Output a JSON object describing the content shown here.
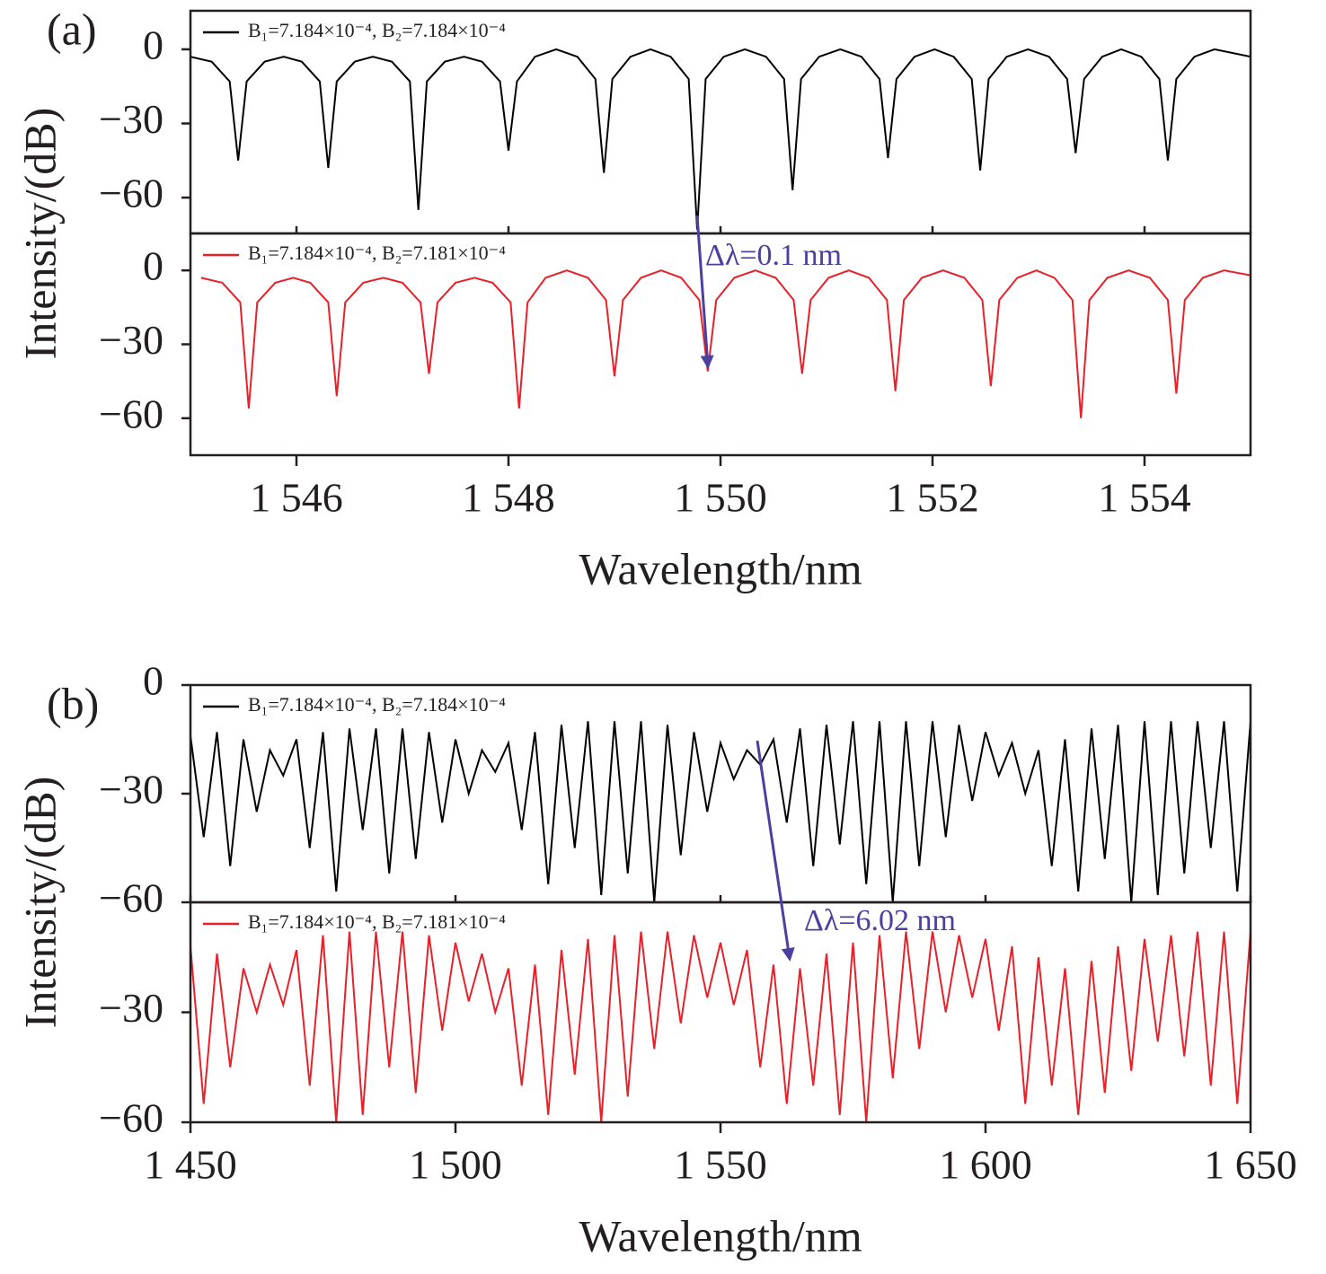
{
  "chart_data": [
    {
      "type": "line",
      "panel_label": "(a)",
      "ylabel": "Intensity/(dB)",
      "xlim": [
        1545,
        1555
      ],
      "ylim": [
        -74.5,
        15.6
      ],
      "yticks": [
        0,
        {
          "value": -30,
          "label": "−30"
        },
        {
          "value": -60,
          "label": "−60"
        }
      ],
      "x": [
        1545,
        1545.2,
        1545.37,
        1545.45,
        1545.53,
        1545.7,
        1545.88,
        1546.05,
        1546.22,
        1546.3,
        1546.38,
        1546.55,
        1546.72,
        1546.9,
        1547.07,
        1547.15,
        1547.23,
        1547.4,
        1547.58,
        1547.75,
        1547.92,
        1548.0,
        1548.08,
        1548.25,
        1548.45,
        1548.65,
        1548.82,
        1548.9,
        1548.98,
        1549.15,
        1549.34,
        1549.53,
        1549.7,
        1549.78,
        1549.86,
        1550.03,
        1550.23,
        1550.43,
        1550.6,
        1550.68,
        1550.76,
        1550.93,
        1551.13,
        1551.33,
        1551.5,
        1551.58,
        1551.66,
        1551.83,
        1552.02,
        1552.2,
        1552.37,
        1552.45,
        1552.53,
        1552.7,
        1552.9,
        1553.1,
        1553.27,
        1553.35,
        1553.43,
        1553.6,
        1553.78,
        1553.97,
        1554.14,
        1554.22,
        1554.3,
        1554.47,
        1554.66,
        1555
      ],
      "series": [
        {
          "name": "B₁=7.184×10⁻⁴, B₂=7.184×10⁻⁴",
          "color": "#000000",
          "values": [
            -3,
            -5,
            -13,
            -45,
            -13,
            -5,
            -3,
            -5,
            -13,
            -48,
            -13,
            -5,
            -3,
            -5,
            -13,
            -65,
            -13,
            -5,
            -3,
            -5,
            -13,
            -41,
            -13,
            -3,
            0,
            -3,
            -12,
            -50,
            -12,
            -3,
            0,
            -3,
            -12,
            -73,
            -12,
            -3,
            0,
            -3,
            -12,
            -57,
            -12,
            -3,
            0,
            -3,
            -12,
            -44,
            -12,
            -3,
            0,
            -3,
            -12,
            -49,
            -12,
            -3,
            0,
            -3,
            -12,
            -42,
            -12,
            -3,
            0,
            -3,
            -12,
            -45,
            -12,
            -3,
            0,
            -3
          ]
        }
      ]
    },
    {
      "type": "line",
      "xlabel": "Wavelength/nm",
      "annotation": "Δλ=0.1 nm",
      "xlim": [
        1545,
        1555
      ],
      "ylim": [
        -75,
        15
      ],
      "xticks": [
        {
          "value": 1546,
          "label": "1 546"
        },
        {
          "value": 1548,
          "label": "1 548"
        },
        {
          "value": 1550,
          "label": "1 550"
        },
        {
          "value": 1552,
          "label": "1 552"
        },
        {
          "value": 1554,
          "label": "1 554"
        }
      ],
      "yticks": [
        0,
        {
          "value": -30,
          "label": "−30"
        },
        {
          "value": -60,
          "label": "−60"
        }
      ],
      "x": [
        1545.1,
        1545.3,
        1545.47,
        1545.55,
        1545.63,
        1545.8,
        1545.97,
        1546.13,
        1546.3,
        1546.38,
        1546.46,
        1546.63,
        1546.82,
        1547.0,
        1547.17,
        1547.25,
        1547.33,
        1547.5,
        1547.68,
        1547.85,
        1548.02,
        1548.1,
        1548.18,
        1548.35,
        1548.55,
        1548.75,
        1548.92,
        1549.0,
        1549.08,
        1549.25,
        1549.44,
        1549.63,
        1549.8,
        1549.88,
        1549.96,
        1550.13,
        1550.33,
        1550.52,
        1550.69,
        1550.77,
        1550.85,
        1551.02,
        1551.21,
        1551.4,
        1551.57,
        1551.65,
        1551.73,
        1551.9,
        1552.1,
        1552.3,
        1552.47,
        1552.55,
        1552.63,
        1552.8,
        1552.98,
        1553.15,
        1553.32,
        1553.4,
        1553.48,
        1553.65,
        1553.85,
        1554.05,
        1554.22,
        1554.3,
        1554.38,
        1554.55,
        1554.75,
        1555
      ],
      "series": [
        {
          "name": "B₁=7.184×10⁻⁴, B₂=7.181×10⁻⁴",
          "color": "#e8202a",
          "values": [
            -3,
            -5,
            -13,
            -56,
            -13,
            -5,
            -3,
            -5,
            -13,
            -51,
            -13,
            -5,
            -3,
            -5,
            -13,
            -42,
            -13,
            -5,
            -3,
            -5,
            -13,
            -56,
            -13,
            -3,
            0,
            -3,
            -12,
            -43,
            -12,
            -3,
            0,
            -3,
            -12,
            -41,
            -12,
            -3,
            0,
            -3,
            -12,
            -42,
            -12,
            -3,
            0,
            -3,
            -12,
            -49,
            -12,
            -3,
            0,
            -3,
            -12,
            -47,
            -12,
            -3,
            0,
            -3,
            -12,
            -60,
            -12,
            -3,
            0,
            -3,
            -12,
            -50,
            -12,
            -3,
            0,
            -2
          ]
        }
      ]
    },
    {
      "type": "line",
      "panel_label": "(b)",
      "ylabel": "Intensity/(dB)",
      "xlim": [
        1450,
        1650
      ],
      "ylim": [
        -60,
        0
      ],
      "yticks": [
        0,
        {
          "value": -30,
          "label": "−30"
        },
        {
          "value": -60,
          "label": "−60"
        }
      ],
      "x": [
        1450,
        1452.5,
        1455,
        1457.5,
        1460,
        1462.5,
        1465,
        1467.5,
        1470,
        1472.5,
        1475,
        1477.5,
        1480,
        1482.5,
        1485,
        1487.5,
        1490,
        1492.5,
        1495,
        1497.5,
        1500,
        1502.5,
        1505,
        1507.5,
        1510,
        1512.5,
        1515,
        1517.5,
        1520,
        1522.5,
        1525,
        1527.5,
        1530,
        1532.5,
        1535,
        1537.5,
        1540,
        1542.5,
        1545,
        1547.5,
        1550,
        1552.5,
        1555,
        1557.5,
        1560,
        1562.5,
        1565,
        1567.5,
        1570,
        1572.5,
        1575,
        1577.5,
        1580,
        1582.5,
        1585,
        1587.5,
        1590,
        1592.5,
        1595,
        1597.5,
        1600,
        1602.5,
        1605,
        1607.5,
        1610,
        1612.5,
        1615,
        1617.5,
        1620,
        1622.5,
        1625,
        1627.5,
        1630,
        1632.5,
        1635,
        1637.5,
        1640,
        1642.5,
        1645,
        1647.5,
        1650
      ],
      "series": [
        {
          "name": "B₁=7.184×10⁻⁴, B₂=7.184×10⁻⁴",
          "color": "#000000",
          "values": [
            -14,
            -42,
            -13,
            -50,
            -15,
            -35,
            -18,
            -25,
            -15,
            -45,
            -13,
            -57,
            -12,
            -40,
            -12,
            -52,
            -12,
            -48,
            -13,
            -38,
            -15,
            -30,
            -18,
            -24,
            -16,
            -40,
            -13,
            -55,
            -11,
            -45,
            -10,
            -58,
            -10,
            -52,
            -10,
            -60,
            -11,
            -47,
            -13,
            -35,
            -16,
            -26,
            -18,
            -22,
            -15,
            -38,
            -12,
            -50,
            -11,
            -44,
            -10,
            -55,
            -10,
            -60,
            -10,
            -50,
            -10,
            -42,
            -11,
            -32,
            -13,
            -25,
            -16,
            -30,
            -18,
            -50,
            -15,
            -57,
            -12,
            -48,
            -11,
            -60,
            -10,
            -58,
            -10,
            -52,
            -10,
            -45,
            -10,
            -57,
            -10
          ]
        }
      ]
    },
    {
      "type": "line",
      "xlabel": "Wavelength/nm",
      "annotation": "Δλ=6.02 nm",
      "xlim": [
        1450,
        1650
      ],
      "ylim": [
        -60,
        0
      ],
      "xticks": [
        {
          "value": 1450,
          "label": "1 450"
        },
        {
          "value": 1500,
          "label": "1 500"
        },
        {
          "value": 1550,
          "label": "1 550"
        },
        {
          "value": 1600,
          "label": "1 600"
        },
        {
          "value": 1650,
          "label": "1 650"
        }
      ],
      "yticks": [
        {
          "value": -30,
          "label": "−30"
        },
        {
          "value": -60,
          "label": "−60"
        }
      ],
      "x": [
        1450,
        1452.5,
        1455,
        1457.5,
        1460,
        1462.5,
        1465,
        1467.5,
        1470,
        1472.5,
        1475,
        1477.5,
        1480,
        1482.5,
        1485,
        1487.5,
        1490,
        1492.5,
        1495,
        1497.5,
        1500,
        1502.5,
        1505,
        1507.5,
        1510,
        1512.5,
        1515,
        1517.5,
        1520,
        1522.5,
        1525,
        1527.5,
        1530,
        1532.5,
        1535,
        1537.5,
        1540,
        1542.5,
        1545,
        1547.5,
        1550,
        1552.5,
        1555,
        1557.5,
        1560,
        1562.5,
        1565,
        1567.5,
        1570,
        1572.5,
        1575,
        1577.5,
        1580,
        1582.5,
        1585,
        1587.5,
        1590,
        1592.5,
        1595,
        1597.5,
        1600,
        1602.5,
        1605,
        1607.5,
        1610,
        1612.5,
        1615,
        1617.5,
        1620,
        1622.5,
        1625,
        1627.5,
        1630,
        1632.5,
        1635,
        1637.5,
        1640,
        1642.5,
        1645,
        1647.5,
        1650
      ],
      "series": [
        {
          "name": "B₁=7.184×10⁻⁴, B₂=7.181×10⁻⁴",
          "color": "#e8202a",
          "values": [
            -12,
            -55,
            -14,
            -45,
            -18,
            -30,
            -17,
            -28,
            -13,
            -50,
            -9,
            -60,
            -8,
            -58,
            -8,
            -45,
            -8,
            -52,
            -9,
            -35,
            -11,
            -27,
            -14,
            -30,
            -18,
            -50,
            -17,
            -58,
            -13,
            -47,
            -10,
            -60,
            -9,
            -53,
            -8,
            -40,
            -8,
            -33,
            -9,
            -26,
            -11,
            -28,
            -13,
            -45,
            -17,
            -55,
            -18,
            -50,
            -14,
            -58,
            -11,
            -60,
            -9,
            -48,
            -8,
            -40,
            -8,
            -30,
            -9,
            -26,
            -10,
            -35,
            -12,
            -55,
            -15,
            -50,
            -18,
            -58,
            -16,
            -52,
            -12,
            -46,
            -10,
            -38,
            -9,
            -42,
            -8,
            -50,
            -8,
            -55,
            -8
          ]
        }
      ]
    }
  ]
}
